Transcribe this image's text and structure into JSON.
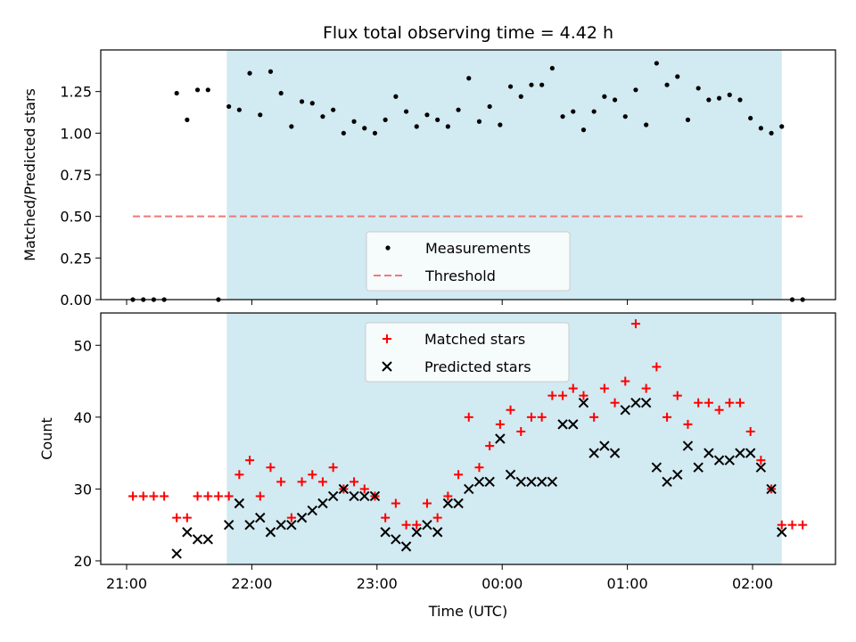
{
  "chart_data": [
    {
      "type": "scatter",
      "title": "Flux total observing time = 4.42 h",
      "xlabel": "",
      "ylabel": "Matched/Predicted stars",
      "ylim": [
        0.0,
        1.5
      ],
      "yticks": [
        0.0,
        0.25,
        0.5,
        0.75,
        1.0,
        1.25
      ],
      "ytick_labels": [
        "0.00",
        "0.25",
        "0.50",
        "0.75",
        "1.00",
        "1.25"
      ],
      "xticks": [
        "21:00",
        "22:00",
        "23:00",
        "00:00",
        "01:00",
        "02:00"
      ],
      "shaded_interval": [
        "21:48",
        "02:14"
      ],
      "legend_position": "lower-center",
      "colors": {
        "measurements": "#000000",
        "threshold": "#f07878",
        "shade": "#add8e6"
      },
      "series": [
        {
          "name": "Measurements",
          "marker": "dot",
          "points": [
            [
              "21:03",
              0.0
            ],
            [
              "21:08",
              0.0
            ],
            [
              "21:13",
              0.0
            ],
            [
              "21:18",
              0.0
            ],
            [
              "21:24",
              1.24
            ],
            [
              "21:29",
              1.08
            ],
            [
              "21:34",
              1.26
            ],
            [
              "21:39",
              1.26
            ],
            [
              "21:44",
              0.0
            ],
            [
              "21:49",
              1.16
            ],
            [
              "21:54",
              1.14
            ],
            [
              "21:59",
              1.36
            ],
            [
              "22:04",
              1.11
            ],
            [
              "22:09",
              1.37
            ],
            [
              "22:14",
              1.24
            ],
            [
              "22:19",
              1.04
            ],
            [
              "22:24",
              1.19
            ],
            [
              "22:29",
              1.18
            ],
            [
              "22:34",
              1.1
            ],
            [
              "22:39",
              1.14
            ],
            [
              "22:44",
              1.0
            ],
            [
              "22:49",
              1.07
            ],
            [
              "22:54",
              1.03
            ],
            [
              "22:59",
              1.0
            ],
            [
              "23:04",
              1.08
            ],
            [
              "23:09",
              1.22
            ],
            [
              "23:14",
              1.13
            ],
            [
              "23:19",
              1.04
            ],
            [
              "23:24",
              1.11
            ],
            [
              "23:29",
              1.08
            ],
            [
              "23:34",
              1.04
            ],
            [
              "23:39",
              1.14
            ],
            [
              "23:44",
              1.33
            ],
            [
              "23:49",
              1.07
            ],
            [
              "23:54",
              1.16
            ],
            [
              "23:59",
              1.05
            ],
            [
              "00:04",
              1.28
            ],
            [
              "00:09",
              1.22
            ],
            [
              "00:14",
              1.29
            ],
            [
              "00:19",
              1.29
            ],
            [
              "00:24",
              1.39
            ],
            [
              "00:29",
              1.1
            ],
            [
              "00:34",
              1.13
            ],
            [
              "00:39",
              1.02
            ],
            [
              "00:44",
              1.13
            ],
            [
              "00:49",
              1.22
            ],
            [
              "00:54",
              1.2
            ],
            [
              "00:59",
              1.1
            ],
            [
              "01:04",
              1.26
            ],
            [
              "01:09",
              1.05
            ],
            [
              "01:14",
              1.42
            ],
            [
              "01:19",
              1.29
            ],
            [
              "01:24",
              1.34
            ],
            [
              "01:29",
              1.08
            ],
            [
              "01:34",
              1.27
            ],
            [
              "01:39",
              1.2
            ],
            [
              "01:44",
              1.21
            ],
            [
              "01:49",
              1.23
            ],
            [
              "01:54",
              1.2
            ],
            [
              "01:59",
              1.09
            ],
            [
              "02:04",
              1.03
            ],
            [
              "02:09",
              1.0
            ],
            [
              "02:14",
              1.04
            ],
            [
              "02:19",
              0.0
            ],
            [
              "02:24",
              0.0
            ]
          ]
        },
        {
          "name": "Threshold",
          "style": "dashed",
          "points": [
            [
              "21:03",
              0.5
            ],
            [
              "02:24",
              0.5
            ]
          ]
        }
      ]
    },
    {
      "type": "scatter",
      "title": "",
      "xlabel": "Time (UTC)",
      "ylabel": "Count",
      "ylim": [
        19.5,
        54.5
      ],
      "yticks": [
        20,
        30,
        40,
        50
      ],
      "ytick_labels": [
        "20",
        "30",
        "40",
        "50"
      ],
      "xticks": [
        "21:00",
        "22:00",
        "23:00",
        "00:00",
        "01:00",
        "02:00"
      ],
      "shaded_interval": [
        "21:48",
        "02:14"
      ],
      "legend_position": "upper-center",
      "colors": {
        "matched": "#ff0000",
        "predicted": "#000000",
        "shade": "#add8e6"
      },
      "series": [
        {
          "name": "Matched stars",
          "marker": "plus",
          "points": [
            [
              "21:03",
              29
            ],
            [
              "21:08",
              29
            ],
            [
              "21:13",
              29
            ],
            [
              "21:18",
              29
            ],
            [
              "21:24",
              26
            ],
            [
              "21:29",
              26
            ],
            [
              "21:34",
              29
            ],
            [
              "21:39",
              29
            ],
            [
              "21:44",
              29
            ],
            [
              "21:49",
              29
            ],
            [
              "21:54",
              32
            ],
            [
              "21:59",
              34
            ],
            [
              "22:04",
              29
            ],
            [
              "22:09",
              33
            ],
            [
              "22:14",
              31
            ],
            [
              "22:19",
              26
            ],
            [
              "22:24",
              31
            ],
            [
              "22:29",
              32
            ],
            [
              "22:34",
              31
            ],
            [
              "22:39",
              33
            ],
            [
              "22:44",
              30
            ],
            [
              "22:49",
              31
            ],
            [
              "22:54",
              30
            ],
            [
              "22:59",
              29
            ],
            [
              "23:04",
              26
            ],
            [
              "23:09",
              28
            ],
            [
              "23:14",
              25
            ],
            [
              "23:19",
              25
            ],
            [
              "23:24",
              28
            ],
            [
              "23:29",
              26
            ],
            [
              "23:34",
              29
            ],
            [
              "23:39",
              32
            ],
            [
              "23:44",
              40
            ],
            [
              "23:49",
              33
            ],
            [
              "23:54",
              36
            ],
            [
              "23:59",
              39
            ],
            [
              "00:04",
              41
            ],
            [
              "00:09",
              38
            ],
            [
              "00:14",
              40
            ],
            [
              "00:19",
              40
            ],
            [
              "00:24",
              43
            ],
            [
              "00:29",
              43
            ],
            [
              "00:34",
              44
            ],
            [
              "00:39",
              43
            ],
            [
              "00:44",
              40
            ],
            [
              "00:49",
              44
            ],
            [
              "00:54",
              42
            ],
            [
              "00:59",
              45
            ],
            [
              "01:04",
              53
            ],
            [
              "01:09",
              44
            ],
            [
              "01:14",
              47
            ],
            [
              "01:19",
              40
            ],
            [
              "01:24",
              43
            ],
            [
              "01:29",
              39
            ],
            [
              "01:34",
              42
            ],
            [
              "01:39",
              42
            ],
            [
              "01:44",
              41
            ],
            [
              "01:49",
              42
            ],
            [
              "01:54",
              42
            ],
            [
              "01:59",
              38
            ],
            [
              "02:04",
              34
            ],
            [
              "02:09",
              30
            ],
            [
              "02:14",
              25
            ],
            [
              "02:19",
              25
            ],
            [
              "02:24",
              25
            ]
          ]
        },
        {
          "name": "Predicted stars",
          "marker": "x",
          "points": [
            [
              "21:24",
              21
            ],
            [
              "21:29",
              24
            ],
            [
              "21:34",
              23
            ],
            [
              "21:39",
              23
            ],
            [
              "21:49",
              25
            ],
            [
              "21:54",
              28
            ],
            [
              "21:59",
              25
            ],
            [
              "22:04",
              26
            ],
            [
              "22:09",
              24
            ],
            [
              "22:14",
              25
            ],
            [
              "22:19",
              25
            ],
            [
              "22:24",
              26
            ],
            [
              "22:29",
              27
            ],
            [
              "22:34",
              28
            ],
            [
              "22:39",
              29
            ],
            [
              "22:44",
              30
            ],
            [
              "22:49",
              29
            ],
            [
              "22:54",
              29
            ],
            [
              "22:59",
              29
            ],
            [
              "23:04",
              24
            ],
            [
              "23:09",
              23
            ],
            [
              "23:14",
              22
            ],
            [
              "23:19",
              24
            ],
            [
              "23:24",
              25
            ],
            [
              "23:29",
              24
            ],
            [
              "23:34",
              28
            ],
            [
              "23:39",
              28
            ],
            [
              "23:44",
              30
            ],
            [
              "23:49",
              31
            ],
            [
              "23:54",
              31
            ],
            [
              "23:59",
              37
            ],
            [
              "00:04",
              32
            ],
            [
              "00:09",
              31
            ],
            [
              "00:14",
              31
            ],
            [
              "00:19",
              31
            ],
            [
              "00:24",
              31
            ],
            [
              "00:29",
              39
            ],
            [
              "00:34",
              39
            ],
            [
              "00:39",
              42
            ],
            [
              "00:44",
              35
            ],
            [
              "00:49",
              36
            ],
            [
              "00:54",
              35
            ],
            [
              "00:59",
              41
            ],
            [
              "01:04",
              42
            ],
            [
              "01:09",
              42
            ],
            [
              "01:14",
              33
            ],
            [
              "01:19",
              31
            ],
            [
              "01:24",
              32
            ],
            [
              "01:29",
              36
            ],
            [
              "01:34",
              33
            ],
            [
              "01:39",
              35
            ],
            [
              "01:44",
              34
            ],
            [
              "01:49",
              34
            ],
            [
              "01:54",
              35
            ],
            [
              "01:59",
              35
            ],
            [
              "02:04",
              33
            ],
            [
              "02:09",
              30
            ],
            [
              "02:14",
              24
            ]
          ]
        }
      ]
    }
  ]
}
